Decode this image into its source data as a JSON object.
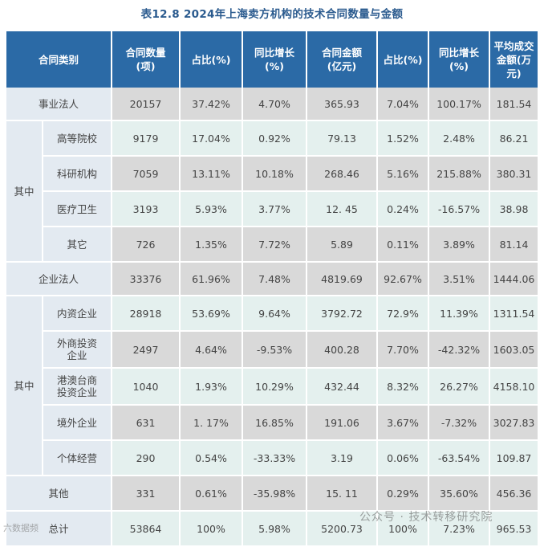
{
  "title": "表12.8    2024年上海卖方机构的技术合同数量与金额",
  "headers": [
    "合同类别",
    "合同数量\n(项)",
    "占比(%)",
    "同比增长\n(%)",
    "合同金额\n(亿元)",
    "占比(%)",
    "同比增长\n(%)",
    "平均成交\n金额(万元)"
  ],
  "group_label_1": "其中",
  "group_label_2": "其中",
  "rows": [
    {
      "label": "事业法人",
      "vals": [
        "20157",
        "37.42%",
        "4.70%",
        "365.93",
        "7.04%",
        "100.17%",
        "181.54"
      ]
    },
    {
      "label": "高等院校",
      "vals": [
        "9179",
        "17.04%",
        "0.92%",
        "79.13",
        "1.52%",
        "2.48%",
        "86.21"
      ]
    },
    {
      "label": "科研机构",
      "vals": [
        "7059",
        "13.11%",
        "10.18%",
        "268.46",
        "5.16%",
        "215.88%",
        "380.31"
      ]
    },
    {
      "label": "医疗卫生",
      "vals": [
        "3193",
        "5.93%",
        "3.77%",
        "12. 45",
        "0.24%",
        "-16.57%",
        "38.98"
      ]
    },
    {
      "label": "其它",
      "vals": [
        "726",
        "1.35%",
        "7.72%",
        "5.89",
        "0.11%",
        "3.89%",
        "81.14"
      ]
    },
    {
      "label": "企业法人",
      "vals": [
        "33376",
        "61.96%",
        "7.48%",
        "4819.69",
        "92.67%",
        "3.51%",
        "1444.06"
      ]
    },
    {
      "label": "内资企业",
      "vals": [
        "28918",
        "53.69%",
        "9.64%",
        "3792.72",
        "72.9%",
        "11.39%",
        "1311.54"
      ]
    },
    {
      "label": "外商投资\n企业",
      "vals": [
        "2497",
        "4.64%",
        "-9.53%",
        "400.28",
        "7.70%",
        "-42.32%",
        "1603.05"
      ]
    },
    {
      "label": "港澳台商\n投资企业",
      "vals": [
        "1040",
        "1.93%",
        "10.29%",
        "432.44",
        "8.32%",
        "26.27%",
        "4158.10"
      ]
    },
    {
      "label": "境外企业",
      "vals": [
        "631",
        "1. 17%",
        "16.85%",
        "191.06",
        "3.67%",
        "-7.32%",
        "3027.83"
      ]
    },
    {
      "label": "个体经营",
      "vals": [
        "290",
        "0.54%",
        "-33.33%",
        "3.19",
        "0.06%",
        "-63.54%",
        "109.87"
      ]
    },
    {
      "label": "其他",
      "vals": [
        "331",
        "0.61%",
        "-35.98%",
        "15. 11",
        "0.29%",
        "35.60%",
        "456.36"
      ]
    },
    {
      "label": "总计",
      "vals": [
        "53864",
        "100%",
        "5.98%",
        "5200.73",
        "100%",
        "7.23%",
        "965.53"
      ]
    }
  ],
  "watermark": "公众号 · 技术转移研究院",
  "logo_text": "六数据频"
}
